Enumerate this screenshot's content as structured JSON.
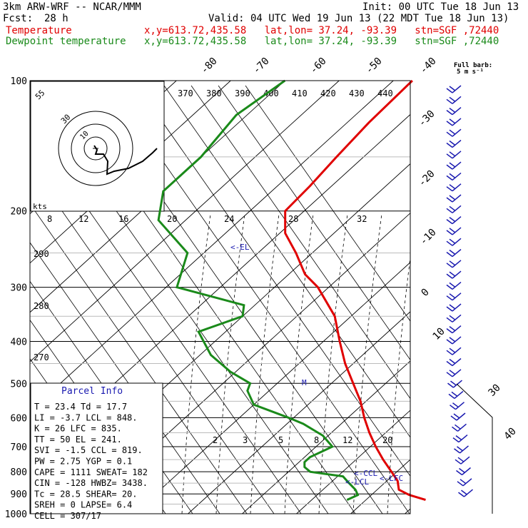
{
  "header": {
    "model": "3km ARW-WRF -- NCAR/MMM",
    "init": "Init: 00 UTC Tue 18 Jun 13",
    "fcst_label": "Fcst:",
    "fcst_value": "28 h",
    "valid": "Valid: 04 UTC Wed 19 Jun 13 (22 MDT Tue 18 Jun 13)",
    "temp_label": "Temperature",
    "temp_info": "x,y=613.72,435.58   lat,lon= 37.24, -93.39   stn=SGF ,72440",
    "dew_label": "Dewpoint temperature",
    "dew_info": "x,y=613.72,435.58   lat,lon= 37.24, -93.39   stn=SGF ,72440"
  },
  "colors": {
    "temperature": "#e00000",
    "dewpoint": "#1a8a1a",
    "parcel_label": "#1a1ab0",
    "barbs": "#1a1ab0",
    "grid": "#000000"
  },
  "barb_legend": {
    "line1": "Full barb:",
    "line2": "5 m s⁻¹"
  },
  "pressure_labels": [
    "100",
    "200",
    "300",
    "400",
    "500",
    "600",
    "700",
    "800",
    "900",
    "1000"
  ],
  "isotherm_top_labels": [
    "-80",
    "-70",
    "-60",
    "-50",
    "-40"
  ],
  "isotherm_right_labels": [
    "-30",
    "-20",
    "-10",
    "0",
    "10",
    "30",
    "40"
  ],
  "theta_labels": [
    "370",
    "380",
    "390",
    "400",
    "410",
    "420",
    "430",
    "440"
  ],
  "theta_left_labels": [
    "290",
    "280",
    "270"
  ],
  "mixing_labels_top": [
    "8",
    "12",
    "16",
    "20",
    "24",
    "28",
    "32"
  ],
  "mixing_labels_low": [
    "2",
    "3",
    "5",
    "8",
    "12",
    "20"
  ],
  "hodograph": {
    "kts_label": "kts",
    "ring_labels": [
      "55",
      "30",
      "10"
    ]
  },
  "levels": {
    "el": "<-EL",
    "ccl": "<-CCL",
    "lcl": "<-LCL",
    "lfc": "<-LFC",
    "m": "M"
  },
  "parcel": {
    "title": "Parcel Info",
    "rows": [
      "T  =   23.4  Td =  17.7",
      "LI =   -3.7  LCL =  848.",
      "K  =     26  LFC =  835.",
      "TT =     50  EL  =  241.",
      "SVI =  -1.5  CCL =  819.",
      "PW =   2.75  YGP =   0.1",
      "CAPE =  1111  SWEAT=  182",
      "CIN =   -128  HWBZ= 3438.",
      "Tc  =   28.5  SHEAR=  20.",
      "SREH =     0  LAPSE=  6.4",
      "CELL = 307/17"
    ]
  },
  "chart_data": {
    "type": "line",
    "title": "",
    "xlabel": "",
    "ylabel": "",
    "y_scale": "log-pressure (hPa, inverted)",
    "ylim": [
      1000,
      100
    ],
    "series": [
      {
        "name": "Temperature",
        "pressure_hPa": [
          929,
          905,
          880,
          840,
          800,
          750,
          700,
          650,
          600,
          550,
          500,
          450,
          400,
          350,
          300,
          280,
          250,
          225,
          200,
          175,
          150,
          125,
          100
        ],
        "temp_C": [
          31.0,
          27.0,
          24.0,
          22.0,
          19.0,
          15.0,
          11.0,
          7.0,
          3.0,
          -1.0,
          -6.0,
          -11.5,
          -17.0,
          -23.0,
          -32.0,
          -37.0,
          -43.0,
          -49.0,
          -53.5,
          -54.0,
          -55.0,
          -56.0,
          -56.5
        ]
      },
      {
        "name": "Dewpoint temperature",
        "pressure_hPa": [
          929,
          905,
          880,
          850,
          820,
          800,
          780,
          760,
          740,
          720,
          700,
          660,
          620,
          600,
          560,
          520,
          500,
          470,
          430,
          380,
          350,
          330,
          300,
          250,
          210,
          180,
          150,
          120,
          100
        ],
        "dewpoint_C": [
          16.5,
          17.5,
          16.0,
          13.5,
          11.0,
          4.0,
          2.0,
          1.0,
          1.0,
          2.0,
          3.0,
          -1.0,
          -7.0,
          -11.0,
          -20.0,
          -24.0,
          -25.0,
          -31.0,
          -38.0,
          -45.0,
          -40.0,
          -42.0,
          -58.0,
          -63.0,
          -75.0,
          -80.0,
          -80.0,
          -82.0,
          -80.0
        ]
      }
    ]
  }
}
